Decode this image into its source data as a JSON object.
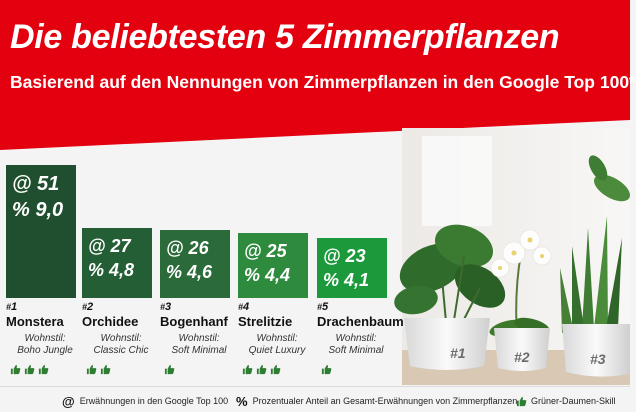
{
  "header": {
    "title": "Die beliebtesten 5 Zimmerpflanzen",
    "subtitle": "Basierend auf den Nennungen von Zimmerpflanzen in den Google Top 100*"
  },
  "colors": {
    "header_red": "#e3000f",
    "bars": [
      "#1f4f2e",
      "#245e35",
      "#2a6b39",
      "#2e8a3c",
      "#1c9a3b"
    ],
    "thumb_green": "#2e7d32"
  },
  "chart_data": {
    "type": "bar",
    "title": "Die beliebtesten 5 Zimmerpflanzen",
    "subtitle": "Basierend auf den Nennungen von Zimmerpflanzen in den Google Top 100*",
    "categories": [
      "Monstera",
      "Orchidee",
      "Bogenhanf",
      "Strelitzie",
      "Drachenbaum"
    ],
    "ranks": [
      "1",
      "2",
      "3",
      "4",
      "5"
    ],
    "series": [
      {
        "name": "Erwähnungen in den Google Top 100",
        "values": [
          51,
          27,
          26,
          25,
          23
        ]
      },
      {
        "name": "Prozentualer Anteil an Gesamt-Erwähnungen von Zimmerpflanzen",
        "values": [
          9.0,
          4.8,
          4.6,
          4.4,
          4.1
        ]
      }
    ],
    "value_labels_mentions": [
      "@ 51",
      "@ 27",
      "@ 26",
      "@ 25",
      "@ 23"
    ],
    "value_labels_percent": [
      "% 9,0",
      "% 4,8",
      "% 4,6",
      "% 4,4",
      "% 4,1"
    ],
    "wohnstil_label": "Wohnstil:",
    "wohnstil": [
      "Boho Jungle",
      "Classic Chic",
      "Soft Minimal",
      "Quiet Luxury",
      "Soft Minimal"
    ],
    "gruener_daumen": [
      3,
      2,
      1,
      3,
      1
    ]
  },
  "photo": {
    "pot_labels": [
      "#1",
      "#2",
      "#3"
    ]
  },
  "legend": {
    "mentions_symbol": "@",
    "mentions": "Erwähnungen in den Google Top 100",
    "percent_symbol": "%",
    "percent": "Prozentualer Anteil an Gesamt-Erwähnungen von Zimmerpflanzen",
    "thumb": "Grüner-Daumen-Skill"
  }
}
